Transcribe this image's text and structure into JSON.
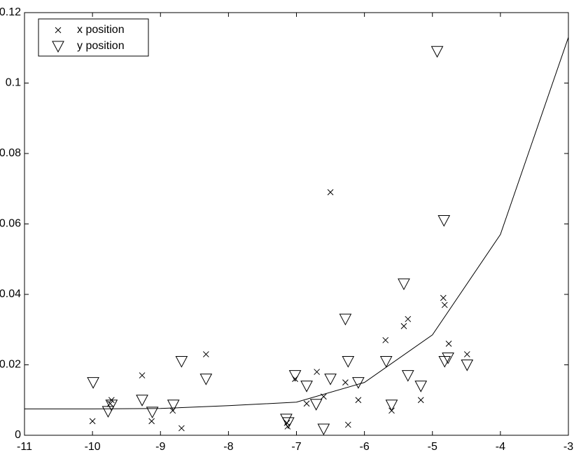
{
  "chart_data": {
    "type": "scatter",
    "xlim": [
      -11,
      -3
    ],
    "ylim": [
      0,
      0.12
    ],
    "xticks": [
      -11,
      -10,
      -9,
      -8,
      -7,
      -6,
      -5,
      -4,
      -3
    ],
    "yticks": [
      0,
      0.02,
      0.04,
      0.06,
      0.08,
      0.1,
      0.12
    ],
    "legend": "upper-left",
    "series": [
      {
        "name": "x position",
        "marker": "x",
        "color": "#000000",
        "x": [
          -10.0,
          -9.74,
          -9.72,
          -9.27,
          -9.13,
          -8.82,
          -8.69,
          -8.33,
          -7.14,
          -7.13,
          -7.02,
          -6.85,
          -6.7,
          -6.6,
          -6.5,
          -6.28,
          -6.24,
          -6.09,
          -5.69,
          -5.6,
          -5.42,
          -5.36,
          -5.17,
          -4.84,
          -4.82,
          -4.76,
          -4.49
        ],
        "values": [
          0.004,
          0.009,
          0.01,
          0.017,
          0.004,
          0.007,
          0.002,
          0.023,
          0.0035,
          0.0025,
          0.016,
          0.009,
          0.018,
          0.011,
          0.069,
          0.015,
          0.003,
          0.01,
          0.027,
          0.007,
          0.031,
          0.033,
          0.01,
          0.039,
          0.037,
          0.026,
          0.023
        ]
      },
      {
        "name": "y position",
        "marker": "triangle-down",
        "color": "#000000",
        "x": [
          -9.99,
          -9.77,
          -9.72,
          -9.27,
          -9.12,
          -8.81,
          -8.69,
          -8.33,
          -7.15,
          -7.12,
          -7.02,
          -6.85,
          -6.71,
          -6.6,
          -6.5,
          -6.28,
          -6.24,
          -6.09,
          -5.68,
          -5.6,
          -5.42,
          -5.36,
          -5.17,
          -4.93,
          -4.83,
          -4.82,
          -4.77,
          -4.49
        ],
        "values": [
          0.015,
          0.0068,
          0.0086,
          0.01,
          0.0066,
          0.0086,
          0.021,
          0.016,
          0.0046,
          0.0036,
          0.017,
          0.014,
          0.0088,
          0.0018,
          0.016,
          0.033,
          0.021,
          0.015,
          0.021,
          0.0086,
          0.043,
          0.017,
          0.014,
          0.109,
          0.061,
          0.021,
          0.022,
          0.02
        ]
      }
    ],
    "fit_line": {
      "color": "#000000",
      "x": [
        -11,
        -10,
        -9,
        -8,
        -7,
        -6,
        -5,
        -4,
        -3
      ],
      "values": [
        0.0075,
        0.0075,
        0.0076,
        0.0084,
        0.0094,
        0.015,
        0.0285,
        0.057,
        0.113
      ]
    }
  }
}
